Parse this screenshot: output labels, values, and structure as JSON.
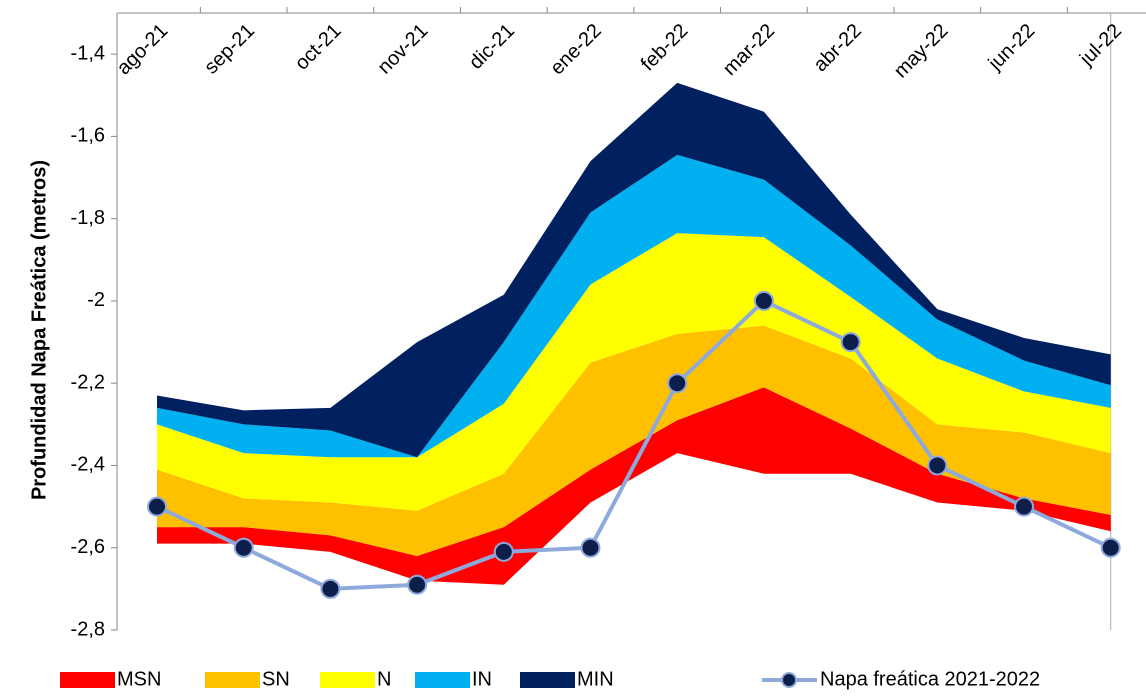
{
  "chart_data": {
    "type": "band",
    "y_label": "Profundidad Napa Freática (metros)",
    "categories": [
      "ago-21",
      "sep-21",
      "oct-21",
      "nov-21",
      "dic-21",
      "ene-22",
      "feb-22",
      "mar-22",
      "abr-22",
      "may-22",
      "jun-22",
      "jul-22"
    ],
    "ylim": [
      -2.8,
      -1.3
    ],
    "yticks": [
      {
        "value": -2.8,
        "label": "-2,8"
      },
      {
        "value": -2.6,
        "label": "-2,6"
      },
      {
        "value": -2.4,
        "label": "-2,4"
      },
      {
        "value": -2.2,
        "label": "-2,2"
      },
      -2,
      {
        "value": -1.8,
        "label": "-1,8"
      },
      {
        "value": -1.6,
        "label": "-1,6"
      },
      {
        "value": -1.4,
        "label": "-1,4"
      }
    ],
    "lower": [
      -2.59,
      -2.59,
      -2.61,
      -2.68,
      -2.69,
      -2.49,
      -2.37,
      -2.42,
      -2.42,
      -2.49,
      -2.51,
      -2.56
    ],
    "series": [
      {
        "name": "MSN",
        "color": "#ff0000",
        "values": [
          -2.55,
          -2.55,
          -2.57,
          -2.62,
          -2.55,
          -2.41,
          -2.29,
          -2.21,
          -2.31,
          -2.42,
          -2.48,
          -2.52
        ]
      },
      {
        "name": "SN",
        "color": "#ffc000",
        "values": [
          -2.41,
          -2.48,
          -2.49,
          -2.51,
          -2.42,
          -2.15,
          -2.08,
          -2.06,
          -2.14,
          -2.3,
          -2.32,
          -2.37
        ]
      },
      {
        "name": "N",
        "color": "#ffff00",
        "values": [
          -2.3,
          -2.37,
          -2.38,
          -2.38,
          -2.25,
          -1.96,
          -1.835,
          -1.845,
          -1.99,
          -2.14,
          -2.22,
          -2.26
        ]
      },
      {
        "name": "IN",
        "color": "#00b0f0",
        "values": [
          -2.26,
          -2.3,
          -2.315,
          -2.38,
          -2.1,
          -1.785,
          -1.645,
          -1.705,
          -1.865,
          -2.045,
          -2.145,
          -2.205
        ]
      },
      {
        "name": "MIN",
        "color": "#002060",
        "values": [
          -2.23,
          -2.266,
          -2.26,
          -2.1,
          -1.985,
          -1.66,
          -1.47,
          -1.54,
          -1.79,
          -2.02,
          -2.09,
          -2.13
        ]
      }
    ],
    "line": {
      "name": "Napa freática 2021-2022",
      "color": "#8ea9db",
      "marker_color": "#0d1e4a",
      "values": [
        -2.5,
        -2.6,
        -2.7,
        -2.69,
        -2.61,
        -2.6,
        -2.2,
        -2,
        -2.1,
        -2.4,
        -2.5,
        -2.6
      ]
    }
  }
}
